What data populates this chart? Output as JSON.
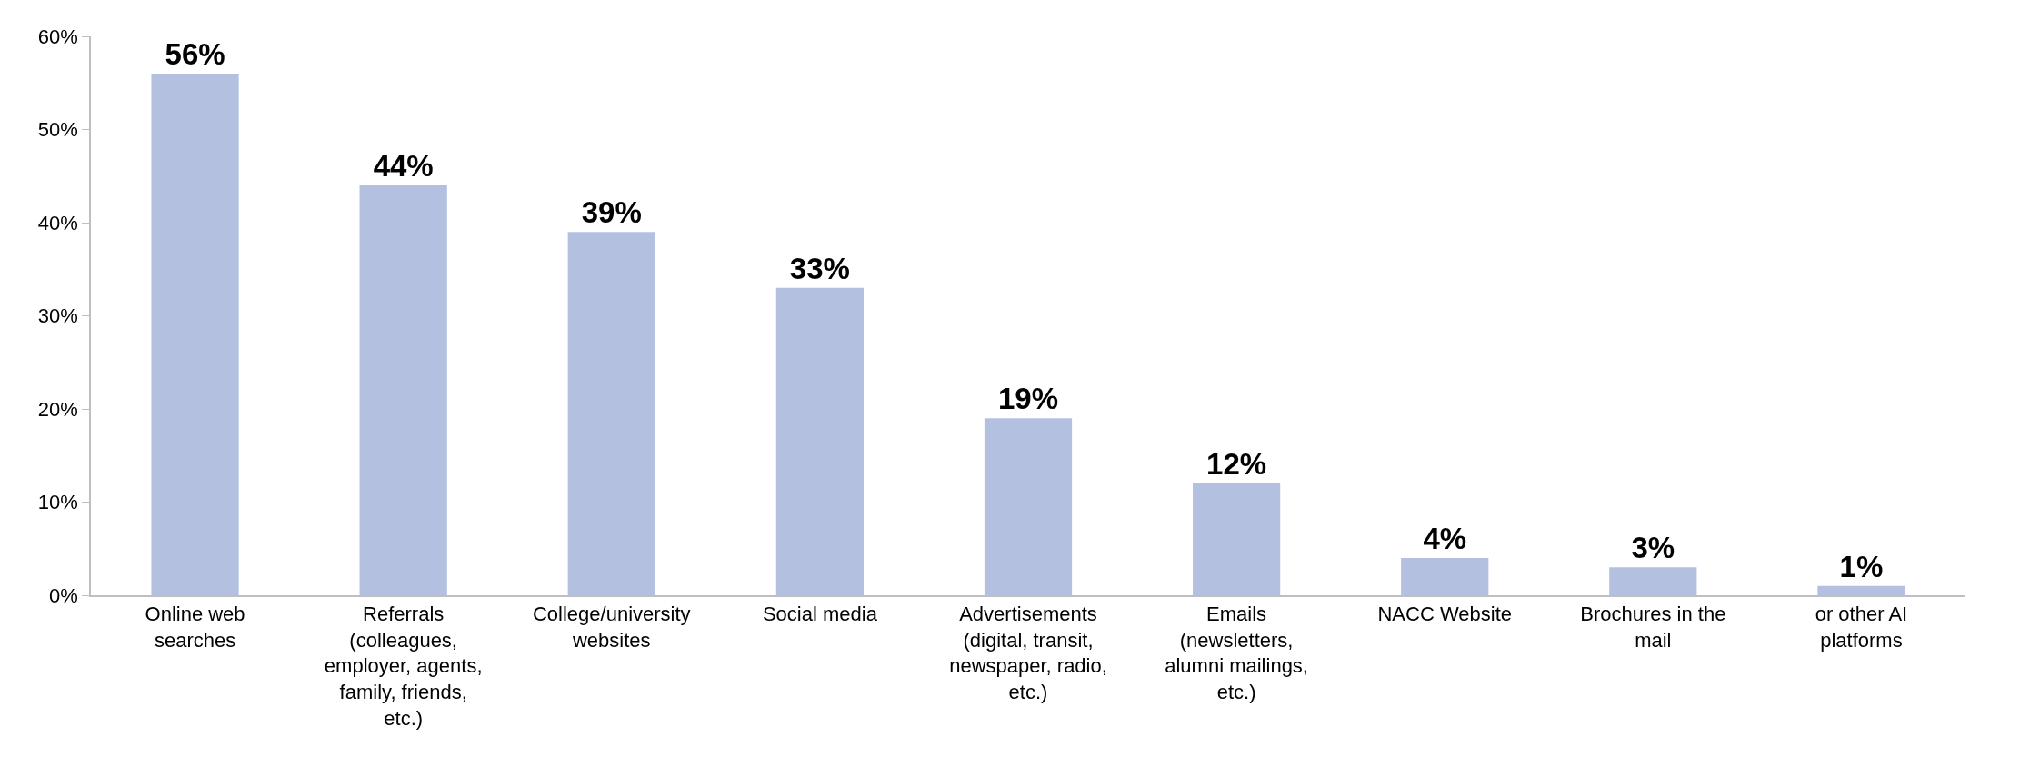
{
  "chart_data": {
    "type": "bar",
    "categories": [
      "Online web searches",
      "Referrals (colleagues, employer, agents, family, friends, etc.)",
      "College/university websites",
      "Social media",
      "Advertisements (digital, transit, newspaper, radio, etc.)",
      "Emails (newsletters, alumni mailings, etc.)",
      "NACC Website",
      "Brochures in the mail",
      "or other AI platforms"
    ],
    "values": [
      56,
      44,
      39,
      33,
      19,
      12,
      4,
      3,
      1
    ],
    "value_labels": [
      "56%",
      "44%",
      "39%",
      "33%",
      "19%",
      "12%",
      "4%",
      "3%",
      "1%"
    ],
    "color": "#b4c0e0",
    "ylim": [
      0,
      60
    ],
    "yticks": [
      {
        "value": 0,
        "label": "0%"
      },
      {
        "value": 10,
        "label": "10%"
      },
      {
        "value": 20,
        "label": "20%"
      },
      {
        "value": 30,
        "label": "30%"
      },
      {
        "value": 40,
        "label": "40%"
      },
      {
        "value": 50,
        "label": "50%"
      },
      {
        "value": 60,
        "label": "60%"
      }
    ],
    "grid": false
  }
}
